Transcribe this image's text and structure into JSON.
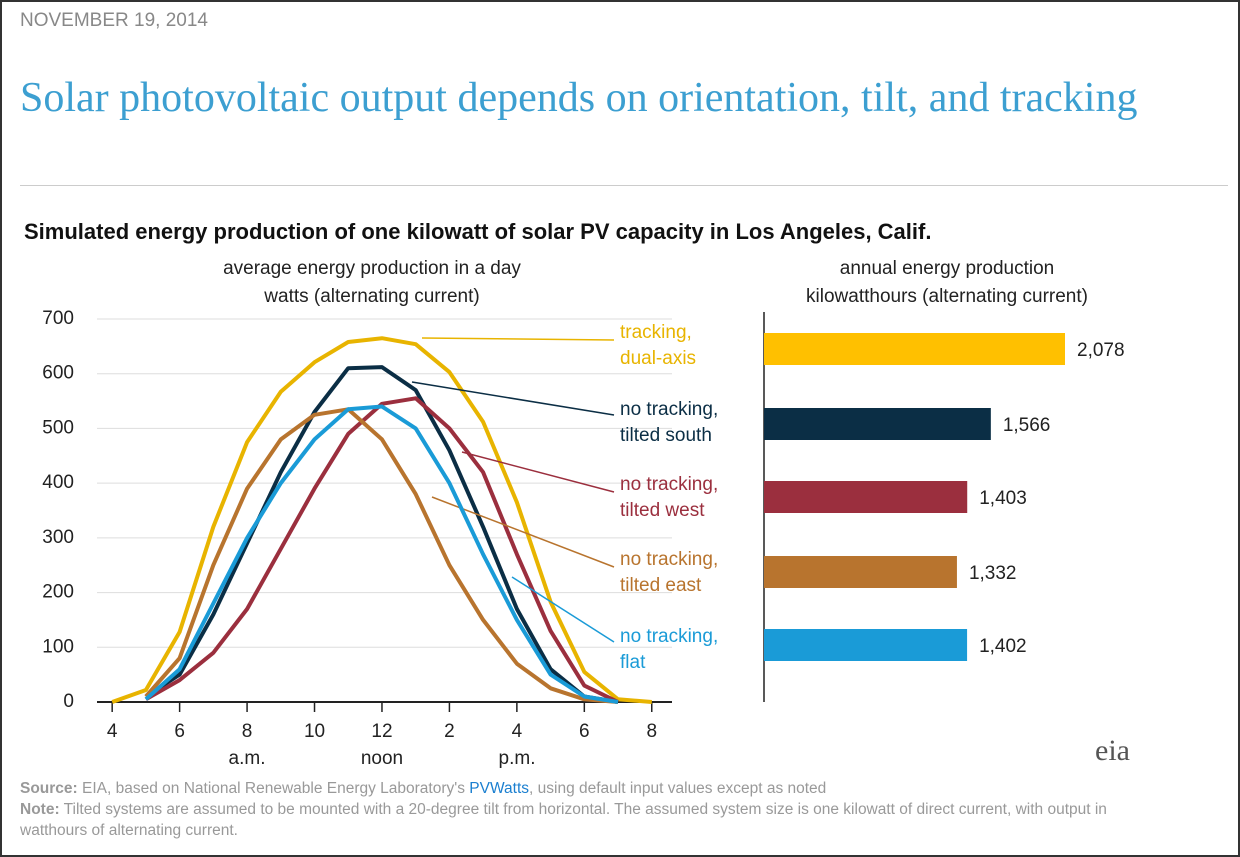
{
  "header": {
    "date": "NOVEMBER 19, 2014",
    "title": "Solar photovoltaic output depends on orientation, tilt, and tracking",
    "subtitle": "Simulated energy production of one kilowatt of solar PV capacity in Los Angeles, Calif."
  },
  "chart_data": [
    {
      "type": "line",
      "title": "average  energy production  in a day",
      "ylabel": "watts (alternating current)",
      "x": [
        4,
        5,
        6,
        7,
        8,
        9,
        10,
        11,
        12,
        13,
        14,
        15,
        16,
        17,
        18,
        19,
        20
      ],
      "xlim": [
        3.55,
        20.6
      ],
      "xticks": [
        4,
        6,
        8,
        10,
        12,
        {
          "value": 14,
          "label": "2"
        },
        {
          "value": 16,
          "label": "4"
        },
        {
          "value": 18,
          "label": "6"
        },
        {
          "value": 20,
          "label": "8"
        }
      ],
      "period_labels": [
        "a.m.",
        "noon",
        "p.m."
      ],
      "ylim": [
        0,
        700
      ],
      "yticks": [
        0,
        100,
        200,
        300,
        400,
        500,
        600,
        700
      ],
      "grid": true,
      "series": [
        {
          "name": "tracking,\ndual-axis",
          "color": "#e8b400",
          "values": [
            0,
            22,
            128,
            320,
            475,
            567,
            621,
            658,
            665,
            654,
            603,
            512,
            365,
            183,
            55,
            5,
            0
          ]
        },
        {
          "name": "no tracking,\ntilted south",
          "color": "#0b2e45",
          "values": [
            null,
            10,
            50,
            160,
            290,
            420,
            530,
            610,
            612,
            570,
            460,
            320,
            170,
            60,
            10,
            0,
            null
          ]
        },
        {
          "name": "no tracking,\ntilted west",
          "color": "#9b2f3e",
          "values": [
            null,
            5,
            40,
            90,
            170,
            280,
            390,
            490,
            545,
            555,
            500,
            420,
            270,
            130,
            30,
            0,
            null
          ]
        },
        {
          "name": "no tracking,\ntilted east",
          "color": "#b8742e",
          "values": [
            null,
            10,
            80,
            250,
            390,
            480,
            525,
            535,
            480,
            380,
            250,
            150,
            70,
            25,
            5,
            0,
            null
          ]
        },
        {
          "name": "no tracking,\nflat",
          "color": "#1a9bd7",
          "values": [
            null,
            5,
            60,
            180,
            300,
            400,
            480,
            535,
            540,
            500,
            400,
            270,
            150,
            50,
            10,
            0,
            null
          ]
        }
      ]
    },
    {
      "type": "hbar",
      "title": "annual energy production",
      "xlabel": "kilowatthours  (alternating current)",
      "categories": [
        null,
        null,
        null,
        null,
        null
      ],
      "values": [
        2078,
        1566,
        1403,
        1332,
        1402
      ],
      "value_labels": [
        "2,078",
        "1,566",
        "1,403",
        "1,332",
        "1,402"
      ],
      "colors": [
        "#ffc000",
        "#0b2e45",
        "#9b2f3e",
        "#b8742e",
        "#1a9bd7"
      ]
    }
  ],
  "footer": {
    "source_label": "Source:",
    "source_before": "EIA, based on National Renewable Energy Laboratory's",
    "source_link": "PVWatts",
    "source_after": ", using default input values except as noted",
    "note_label": "Note:",
    "note_text": "Tilted systems are assumed to be mounted with a 20-degree tilt from horizontal. The assumed system size is one kilowatt of direct current, with output in watthours of alternating current.",
    "logo": "eia"
  }
}
